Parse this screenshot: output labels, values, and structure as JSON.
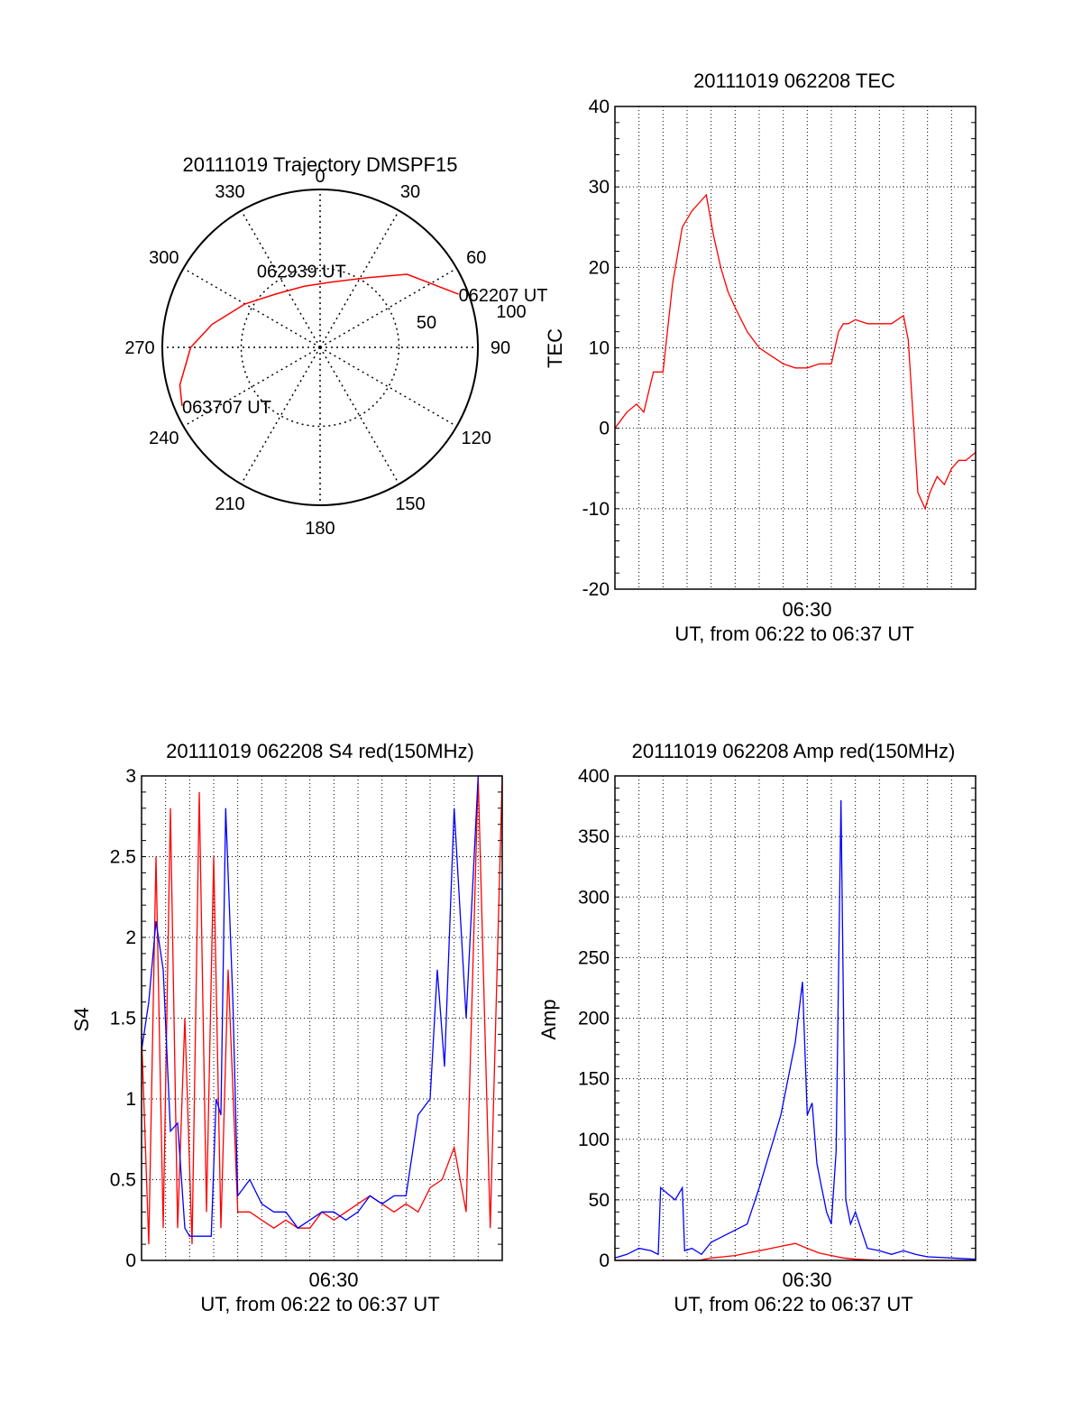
{
  "chart_data": [
    {
      "id": "polar",
      "type": "polar",
      "title": "20111019 Trajectory DMSPF15",
      "azimuth_labels": [
        "0",
        "30",
        "60",
        "90",
        "120",
        "150",
        "180",
        "210",
        "240",
        "270",
        "300",
        "330"
      ],
      "elevation_rings": [
        {
          "label": "50",
          "value": 50
        }
      ],
      "outer_label": "100",
      "trajectory_color": "#ff0000",
      "trajectory": [
        {
          "az": 69,
          "r": 94
        },
        {
          "az": 50,
          "r": 72
        },
        {
          "az": 35,
          "r": 54
        },
        {
          "az": 10,
          "r": 42
        },
        {
          "az": -15,
          "r": 40
        },
        {
          "az": -40,
          "r": 44
        },
        {
          "az": -60,
          "r": 55
        },
        {
          "az": -78,
          "r": 70
        },
        {
          "az": -90,
          "r": 82
        },
        {
          "az": -105,
          "r": 92
        },
        {
          "az": -113,
          "r": 95
        }
      ],
      "annotations": [
        {
          "text": "062207 UT",
          "az": 69,
          "r": 94
        },
        {
          "text": "062939 UT",
          "az": -15,
          "r": 40
        },
        {
          "text": "063707 UT",
          "az": -113,
          "r": 95
        }
      ]
    },
    {
      "id": "tec",
      "type": "line",
      "title": "20111019 062208 TEC",
      "ylabel": "TEC",
      "xlabel": "UT, from 06:22 to 06:37 UT",
      "xlim": [
        0,
        15
      ],
      "ylim": [
        -20,
        40
      ],
      "yticks": [
        -20,
        -10,
        0,
        10,
        20,
        30,
        40
      ],
      "xtick_labels": [
        {
          "x": 8,
          "label": "06:30"
        }
      ],
      "grid": true,
      "series": [
        {
          "color": "#ff0000",
          "x": [
            0,
            0.5,
            0.9,
            1.2,
            1.6,
            2.0,
            2.4,
            2.8,
            3.2,
            3.5,
            3.8,
            4.1,
            4.4,
            4.7,
            5.0,
            5.5,
            6.0,
            6.5,
            7.0,
            7.5,
            8.0,
            8.5,
            9.0,
            9.3,
            9.5,
            9.7,
            10.0,
            10.5,
            11.0,
            11.5,
            12.0,
            12.2,
            12.6,
            12.9,
            13.1,
            13.4,
            13.7,
            14.0,
            14.3,
            14.6,
            15.0
          ],
          "values": [
            0,
            2,
            3,
            2,
            7,
            7,
            18,
            25,
            27,
            28,
            29,
            24,
            20,
            17,
            15,
            12,
            10,
            9,
            8,
            7.5,
            7.5,
            8,
            8,
            12,
            13,
            13,
            13.5,
            13,
            13,
            13,
            14,
            11,
            -8,
            -10,
            -8,
            -6,
            -7,
            -5,
            -4,
            -4,
            -3
          ]
        }
      ]
    },
    {
      "id": "s4",
      "type": "line",
      "title": "20111019 062208 S4 red(150MHz)",
      "ylabel": "S4",
      "xlabel": "UT, from 06:22 to 06:37 UT",
      "xlim": [
        0,
        15
      ],
      "ylim": [
        0,
        3
      ],
      "yticks": [
        0,
        0.5,
        1,
        1.5,
        2,
        2.5,
        3
      ],
      "ytick_labels": [
        "0",
        "0.5",
        "1",
        "1.5",
        "2",
        "2.5",
        "3"
      ],
      "xtick_labels": [
        {
          "x": 8,
          "label": "06:30"
        }
      ],
      "grid": true,
      "series": [
        {
          "color": "#ff0000",
          "x": [
            0,
            0.3,
            0.6,
            0.9,
            1.2,
            1.5,
            1.8,
            2.1,
            2.4,
            2.7,
            3.0,
            3.3,
            3.6,
            4.0,
            4.5,
            5.0,
            5.5,
            6.0,
            6.5,
            7.0,
            7.5,
            8.0,
            8.5,
            9.0,
            9.5,
            10.0,
            10.5,
            11.0,
            11.5,
            12.0,
            12.5,
            13.0,
            13.5,
            14.0,
            14.5,
            15.0
          ],
          "values": [
            1.4,
            0.1,
            2.5,
            0.2,
            2.8,
            0.2,
            1.5,
            0.1,
            2.9,
            0.3,
            2.5,
            0.2,
            1.8,
            0.3,
            0.3,
            0.25,
            0.2,
            0.25,
            0.2,
            0.2,
            0.3,
            0.25,
            0.3,
            0.35,
            0.4,
            0.35,
            0.3,
            0.35,
            0.3,
            0.45,
            0.5,
            0.7,
            0.3,
            3.0,
            0.2,
            3.0
          ]
        },
        {
          "color": "#0000ff",
          "x": [
            0,
            0.3,
            0.6,
            0.9,
            1.2,
            1.5,
            1.8,
            2.0,
            2.3,
            2.6,
            2.9,
            3.1,
            3.3,
            3.5,
            3.8,
            4.0,
            4.5,
            5.0,
            5.5,
            6.0,
            6.5,
            7.0,
            7.5,
            8.0,
            8.5,
            9.0,
            9.5,
            10.0,
            10.5,
            11.0,
            11.5,
            12.0,
            12.3,
            12.6,
            13.0,
            13.5,
            14.0,
            14.5,
            15.0
          ],
          "values": [
            1.3,
            1.6,
            2.1,
            1.8,
            0.8,
            0.85,
            0.2,
            0.15,
            0.15,
            0.15,
            0.15,
            1.0,
            0.9,
            2.8,
            1.6,
            0.4,
            0.5,
            0.35,
            0.3,
            0.3,
            0.2,
            0.25,
            0.3,
            0.3,
            0.25,
            0.3,
            0.4,
            0.35,
            0.4,
            0.4,
            0.9,
            1.0,
            1.8,
            1.2,
            2.8,
            1.5,
            3.0,
            3.0,
            3.0
          ]
        }
      ]
    },
    {
      "id": "amp",
      "type": "line",
      "title": "20111019 062208 Amp red(150MHz)",
      "ylabel": "Amp",
      "xlabel": "UT, from 06:22 to 06:37 UT",
      "xlim": [
        0,
        15
      ],
      "ylim": [
        0,
        400
      ],
      "yticks": [
        0,
        50,
        100,
        150,
        200,
        250,
        300,
        350,
        400
      ],
      "xtick_labels": [
        {
          "x": 8,
          "label": "06:30"
        }
      ],
      "grid": true,
      "series": [
        {
          "color": "#0000ff",
          "x": [
            0,
            0.5,
            1.0,
            1.5,
            1.8,
            1.9,
            2.2,
            2.5,
            2.8,
            2.9,
            3.2,
            3.6,
            4.0,
            4.5,
            5.0,
            5.5,
            6.0,
            6.3,
            6.6,
            6.9,
            7.2,
            7.5,
            7.8,
            8.0,
            8.2,
            8.4,
            8.6,
            8.8,
            9.0,
            9.2,
            9.4,
            9.6,
            9.8,
            10.0,
            10.5,
            11.0,
            11.5,
            12.0,
            12.5,
            13.0,
            14.0,
            15.0
          ],
          "values": [
            2,
            5,
            10,
            8,
            5,
            60,
            55,
            50,
            60,
            8,
            10,
            5,
            15,
            20,
            25,
            30,
            60,
            80,
            100,
            120,
            150,
            180,
            230,
            120,
            130,
            80,
            60,
            40,
            30,
            90,
            380,
            50,
            30,
            40,
            10,
            8,
            5,
            8,
            5,
            3,
            2,
            1
          ]
        },
        {
          "color": "#ff0000",
          "x": [
            0,
            3.5,
            4.0,
            4.5,
            5.0,
            5.5,
            6.0,
            6.5,
            7.0,
            7.5,
            8.0,
            8.5,
            9.0,
            9.5,
            10.0,
            11.0,
            12.0,
            15.0
          ],
          "values": [
            0,
            0,
            2,
            3,
            4,
            6,
            8,
            10,
            12,
            14,
            10,
            6,
            4,
            2,
            1,
            0,
            0,
            0
          ]
        }
      ]
    }
  ]
}
